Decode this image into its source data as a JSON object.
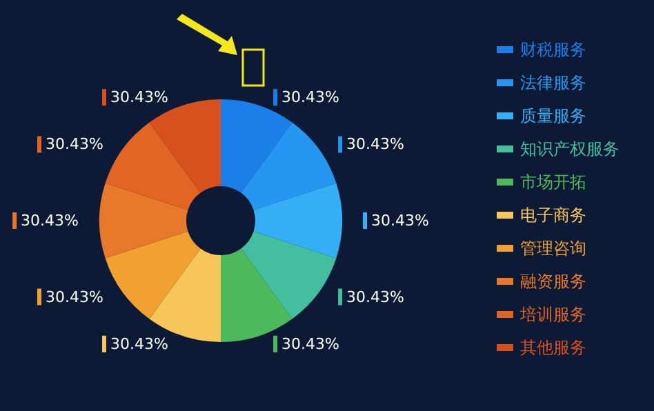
{
  "chart_data": {
    "type": "donut",
    "legend": "right",
    "categories": [
      "财税服务",
      "法律服务",
      "质量服务",
      "知识产权服务",
      "市场开拓",
      "电子商务",
      "管理咨询",
      "融资服务",
      "培训服务",
      "其他服务"
    ],
    "values": [
      30.43,
      30.43,
      30.43,
      30.43,
      30.43,
      30.43,
      30.43,
      30.43,
      30.43,
      30.43
    ],
    "value_labels": [
      "30.43%",
      "30.43%",
      "30.43%",
      "30.43%",
      "30.43%",
      "30.43%",
      "30.43%",
      "30.43%",
      "30.43%",
      "30.43%"
    ],
    "colors": [
      "#1a7fe8",
      "#2597f0",
      "#34aef5",
      "#43bfa0",
      "#4cba5c",
      "#f7c65a",
      "#f0a132",
      "#e8792a",
      "#e26523",
      "#d9501f"
    ]
  }
}
